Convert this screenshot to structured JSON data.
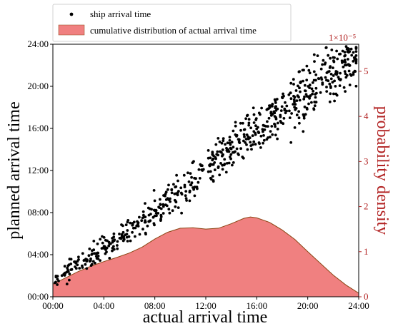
{
  "chart_data": {
    "type": "scatter",
    "xlabel": "actual arrival time",
    "ylabel": "planned arrival time",
    "y2label": "probability density",
    "xlim": [
      0,
      24
    ],
    "ylim": [
      0,
      24
    ],
    "y2lim": [
      0,
      5.6
    ],
    "y2_exponent": "1×10⁻⁵",
    "x_ticks": [
      "00:00",
      "04:00",
      "08:00",
      "12:00",
      "16:00",
      "20:00",
      "24:00"
    ],
    "y_ticks": [
      "00:00",
      "04:00",
      "08:00",
      "12:00",
      "16:00",
      "20:00",
      "24:00"
    ],
    "y2_ticks": [
      "0",
      "1",
      "2",
      "3",
      "4",
      "5"
    ],
    "legend": {
      "position": "top-left",
      "scatter_label": "ship arrival time",
      "area_label": "cumulative distribution of actual arrival time"
    },
    "scatter_color": "#000000",
    "area_color": "#f08080",
    "area_edge_color": "#8b4513",
    "right_axis_color": "#b22222",
    "series": [
      {
        "name": "ship arrival time",
        "type": "scatter",
        "approx_trend": {
          "x": [
            0,
            4,
            8,
            12,
            16,
            20,
            23
          ],
          "y": [
            1.5,
            4.5,
            8,
            12,
            16,
            19.5,
            22.5
          ]
        },
        "approx_count": 700
      },
      {
        "name": "cumulative distribution of actual arrival time",
        "type": "area",
        "x": [
          0,
          1,
          2,
          3,
          4,
          5,
          6,
          7,
          8,
          9,
          10,
          11,
          12,
          13,
          14,
          15,
          15.5,
          16,
          17,
          18,
          19,
          20,
          21,
          22,
          23,
          24
        ],
        "y": [
          0.28,
          0.42,
          0.56,
          0.68,
          0.78,
          0.87,
          0.97,
          1.1,
          1.28,
          1.43,
          1.52,
          1.53,
          1.5,
          1.52,
          1.62,
          1.74,
          1.77,
          1.75,
          1.65,
          1.48,
          1.27,
          1.0,
          0.74,
          0.48,
          0.26,
          0.08
        ]
      }
    ]
  }
}
